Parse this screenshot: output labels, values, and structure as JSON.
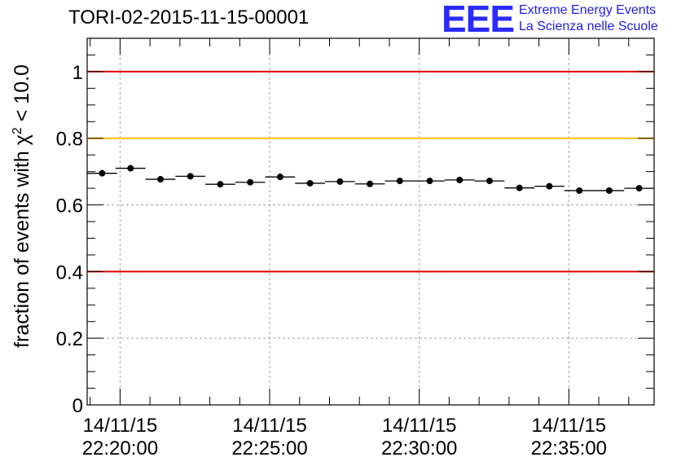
{
  "title": "TORI-02-2015-11-15-00001",
  "logo": {
    "mark": "EEE",
    "line1": "Extreme Energy Events",
    "line2": "La Scienza nelle Scuole"
  },
  "colors": {
    "red_line": "#e00000",
    "orange_line": "#ffc000",
    "logo_blue": "#2b2bff",
    "grid": "#a0a0a0"
  },
  "chart_data": {
    "type": "scatter",
    "title": "TORI-02-2015-11-15-00001",
    "ylabel_prefix": "fraction of events with χ",
    "ylabel_sup": "2",
    "ylabel_suffix": " < 10.0",
    "xlabel": "",
    "ylim": [
      0,
      1.1
    ],
    "xlim_minutes": [
      -1.1,
      17.85
    ],
    "yticks": [
      {
        "value": 0,
        "label": "0"
      },
      {
        "value": 0.2,
        "label": "0.2"
      },
      {
        "value": 0.4,
        "label": "0.4"
      },
      {
        "value": 0.6,
        "label": "0.6"
      },
      {
        "value": 0.8,
        "label": "0.8"
      },
      {
        "value": 1,
        "label": "1"
      }
    ],
    "xticks": [
      {
        "minute": 0,
        "date": "14/11/15",
        "time": "22:20:00"
      },
      {
        "minute": 5,
        "date": "14/11/15",
        "time": "22:25:00"
      },
      {
        "minute": 10,
        "date": "14/11/15",
        "time": "22:30:00"
      },
      {
        "minute": 15,
        "date": "14/11/15",
        "time": "22:35:00"
      }
    ],
    "grid": true,
    "bin_width_minutes": 1,
    "reference_lines": [
      {
        "y": 1.0,
        "color": "#e00000"
      },
      {
        "y": 0.8,
        "color": "#ffc000"
      },
      {
        "y": 0.4,
        "color": "#e00000"
      }
    ],
    "points": [
      {
        "x": -0.6,
        "y": 0.695
      },
      {
        "x": 0.35,
        "y": 0.71
      },
      {
        "x": 1.35,
        "y": 0.677
      },
      {
        "x": 2.35,
        "y": 0.686
      },
      {
        "x": 3.35,
        "y": 0.662
      },
      {
        "x": 4.35,
        "y": 0.668
      },
      {
        "x": 5.35,
        "y": 0.684
      },
      {
        "x": 6.35,
        "y": 0.665
      },
      {
        "x": 7.35,
        "y": 0.67
      },
      {
        "x": 8.35,
        "y": 0.663
      },
      {
        "x": 9.35,
        "y": 0.672
      },
      {
        "x": 10.35,
        "y": 0.672
      },
      {
        "x": 11.35,
        "y": 0.675
      },
      {
        "x": 12.35,
        "y": 0.672
      },
      {
        "x": 13.35,
        "y": 0.651
      },
      {
        "x": 14.35,
        "y": 0.656
      },
      {
        "x": 15.35,
        "y": 0.643
      },
      {
        "x": 16.35,
        "y": 0.643
      },
      {
        "x": 17.35,
        "y": 0.65
      }
    ]
  }
}
